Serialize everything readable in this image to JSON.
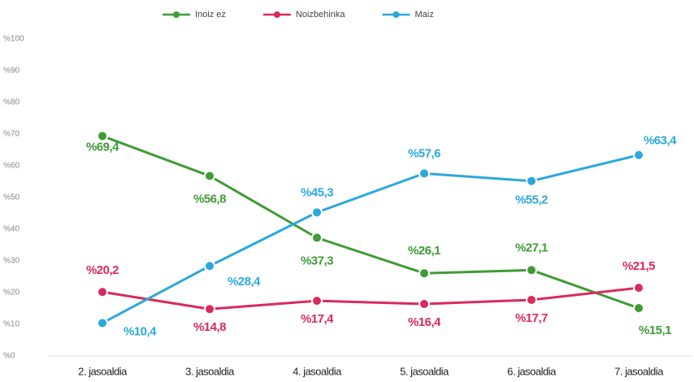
{
  "chart_data": {
    "type": "line",
    "categories": [
      "2. jasoaldia",
      "3. jasoaldia",
      "4. jasoaldia",
      "5. jasoaldia",
      "6. jasoaldia",
      "7. jasoaldia"
    ],
    "series": [
      {
        "name": "Inoiz ez",
        "color": "#3f9b35",
        "values": [
          69.4,
          56.8,
          37.3,
          26.1,
          27.1,
          15.1
        ],
        "value_labels": [
          "%69,4",
          "%56,8",
          "%37,3",
          "%26,1",
          "%27,1",
          "%15,1"
        ]
      },
      {
        "name": "Noizbehinka",
        "color": "#d92a5c",
        "values": [
          20.2,
          14.8,
          17.4,
          16.4,
          17.7,
          21.5
        ],
        "value_labels": [
          "%20,2",
          "%14,8",
          "%17,4",
          "%16,4",
          "%17,7",
          "%21,5"
        ]
      },
      {
        "name": "Maiz",
        "color": "#2ba8de",
        "values": [
          10.4,
          28.4,
          45.3,
          57.6,
          55.2,
          63.4
        ],
        "value_labels": [
          "%10,4",
          "%28,4",
          "%45,3",
          "%57,6",
          "%55,2",
          "%63,4"
        ]
      }
    ],
    "ylim": [
      0,
      100
    ],
    "yticks": [
      {
        "value": 0,
        "label": "%0"
      },
      {
        "value": 10,
        "label": "%10"
      },
      {
        "value": 20,
        "label": "%20"
      },
      {
        "value": 30,
        "label": "%30"
      },
      {
        "value": 40,
        "label": "%40"
      },
      {
        "value": 50,
        "label": "%50"
      },
      {
        "value": 60,
        "label": "%60"
      },
      {
        "value": 70,
        "label": "%70"
      },
      {
        "value": 80,
        "label": "%80"
      },
      {
        "value": 90,
        "label": "%90"
      },
      {
        "value": 100,
        "label": "%100"
      }
    ],
    "grid": false,
    "legend": "top"
  }
}
